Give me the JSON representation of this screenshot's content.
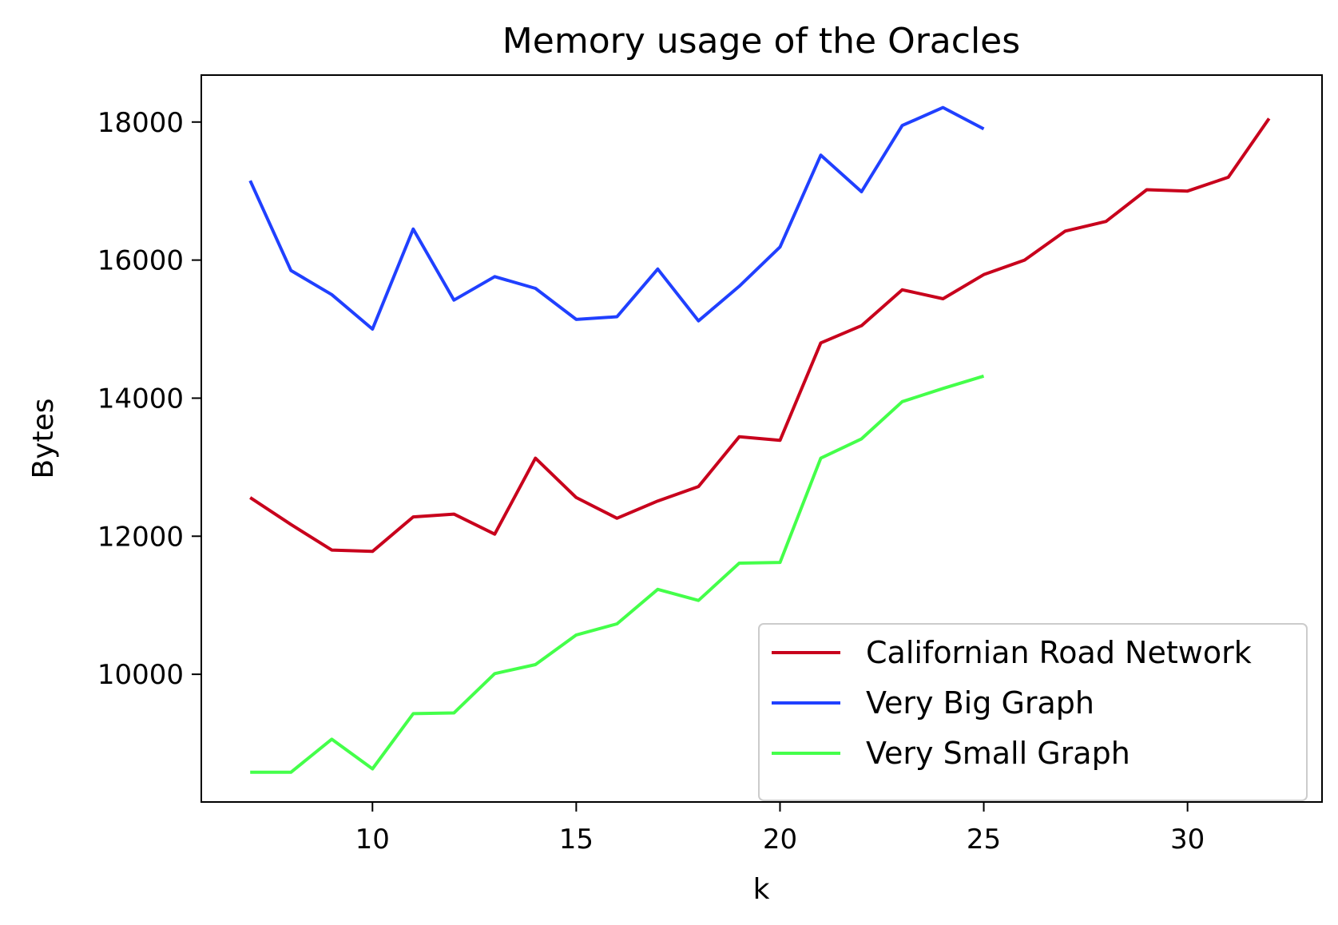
{
  "chart_data": {
    "type": "line",
    "title": "Memory usage of the Oracles",
    "xlabel": "k",
    "ylabel": "Bytes",
    "xlim": [
      5.8,
      33.3
    ],
    "ylim": [
      8150,
      18680
    ],
    "xticks": [
      10,
      15,
      20,
      25,
      30
    ],
    "yticks": [
      10000,
      12000,
      14000,
      16000,
      18000
    ],
    "grid": false,
    "legend_position": "lower-right",
    "series": [
      {
        "name": "Californian Road Network",
        "color": "#c8001c",
        "x": [
          7,
          8,
          9,
          10,
          11,
          12,
          13,
          14,
          15,
          16,
          17,
          18,
          19,
          20,
          21,
          22,
          23,
          24,
          25,
          26,
          27,
          28,
          29,
          30,
          31,
          32
        ],
        "y": [
          12560,
          12170,
          11800,
          11780,
          12280,
          12320,
          12030,
          13130,
          12560,
          12260,
          12510,
          12720,
          13440,
          13390,
          14800,
          15050,
          15570,
          15440,
          15790,
          16000,
          16420,
          16560,
          17020,
          17000,
          17200,
          18050
        ]
      },
      {
        "name": "Very Big Graph",
        "color": "#2040ff",
        "x": [
          7,
          8,
          9,
          10,
          11,
          12,
          13,
          14,
          15,
          16,
          17,
          18,
          19,
          20,
          21,
          22,
          23,
          24,
          25
        ],
        "y": [
          17150,
          15850,
          15500,
          15000,
          16450,
          15420,
          15760,
          15590,
          15140,
          15180,
          15870,
          15120,
          15620,
          16190,
          17520,
          16990,
          17950,
          18210,
          17900
        ]
      },
      {
        "name": "Very Small Graph",
        "color": "#44ff4a",
        "x": [
          7,
          8,
          9,
          10,
          11,
          12,
          13,
          14,
          15,
          16,
          17,
          18,
          19,
          20,
          21,
          22,
          23,
          24,
          25
        ],
        "y": [
          8580,
          8580,
          9060,
          8630,
          9430,
          9440,
          10010,
          10140,
          10570,
          10730,
          11230,
          11070,
          11610,
          11620,
          13130,
          13410,
          13950,
          14140,
          14320
        ]
      }
    ]
  }
}
